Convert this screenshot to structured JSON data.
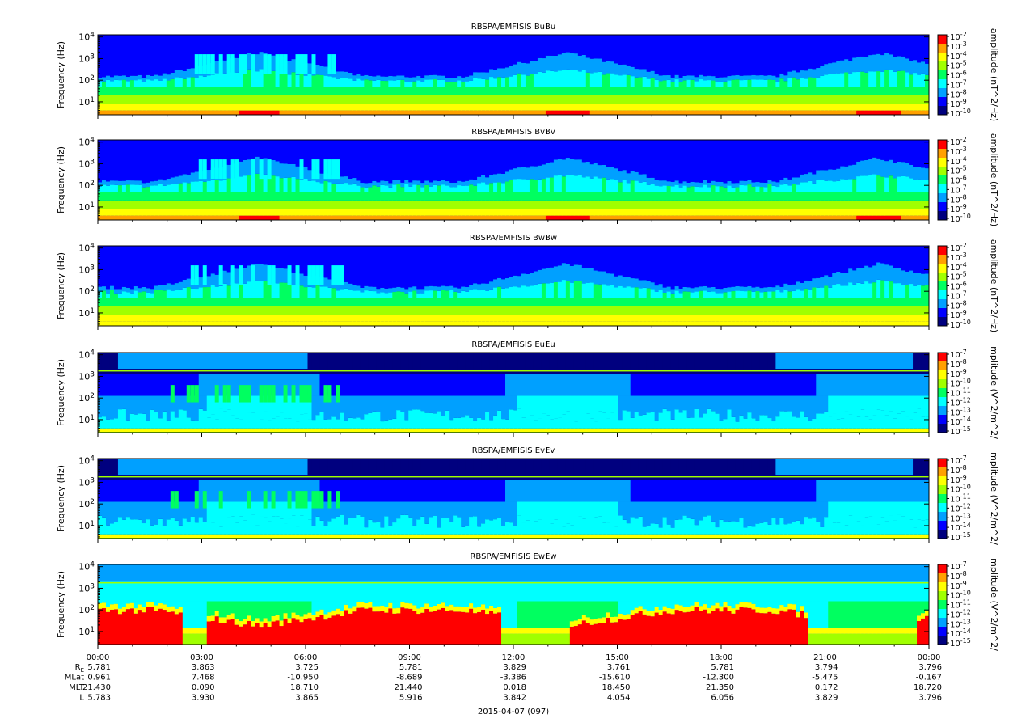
{
  "chart_data": {
    "type": "heatmap",
    "panels": [
      {
        "title": "RBSPA/EMFISIS  BuBu",
        "ylabel": "Frequency (Hz)",
        "cbar_label": "amplitude (nT^2/Hz)",
        "cbar_ticks": [
          "10^-2",
          "10^-3",
          "10^-4",
          "10^-5",
          "10^-6",
          "10^-7",
          "10^-8",
          "10^-9",
          "10^-10"
        ],
        "kind": "B"
      },
      {
        "title": "RBSPA/EMFISIS  BvBv",
        "ylabel": "Frequency (Hz)",
        "cbar_label": "amplitude (nT^2/Hz)",
        "cbar_ticks": [
          "10^-2",
          "10^-3",
          "10^-4",
          "10^-5",
          "10^-6",
          "10^-7",
          "10^-8",
          "10^-9",
          "10^-10"
        ],
        "kind": "B"
      },
      {
        "title": "RBSPA/EMFISIS  BwBw",
        "ylabel": "Frequency (Hz)",
        "cbar_label": "amplitude (nT^2/Hz)",
        "cbar_ticks": [
          "10^-2",
          "10^-3",
          "10^-4",
          "10^-5",
          "10^-6",
          "10^-7",
          "10^-8",
          "10^-9",
          "10^-10"
        ],
        "kind": "Bw"
      },
      {
        "title": "RBSPA/EMFISIS  EuEu",
        "ylabel": "Frequency (Hz)",
        "cbar_label": "mplitude (V^2/m^2/",
        "cbar_ticks": [
          "10^-7",
          "10^-8",
          "10^-9",
          "10^-10",
          "10^-11",
          "10^-12",
          "10^-13",
          "10^-14",
          "10^-15"
        ],
        "kind": "E"
      },
      {
        "title": "RBSPA/EMFISIS  EvEv",
        "ylabel": "Frequency (Hz)",
        "cbar_label": "mplitude (V^2/m^2/",
        "cbar_ticks": [
          "10^-7",
          "10^-8",
          "10^-9",
          "10^-10",
          "10^-11",
          "10^-12",
          "10^-13",
          "10^-14",
          "10^-15"
        ],
        "kind": "E"
      },
      {
        "title": "RBSPA/EMFISIS  EwEw",
        "ylabel": "Frequency (Hz)",
        "cbar_label": "mplitude (V^2/m^2/",
        "cbar_ticks": [
          "10^-7",
          "10^-8",
          "10^-9",
          "10^-10",
          "10^-11",
          "10^-12",
          "10^-13",
          "10^-14",
          "10^-15"
        ],
        "kind": "Ew"
      }
    ],
    "y_scale": "log",
    "y_ticks": [
      1,
      2,
      3,
      4
    ],
    "y_tick_labels": [
      "10^1",
      "10^2",
      "10^3",
      "10^4"
    ],
    "ylim_log10": [
      0.4,
      4.1
    ],
    "xlim_hours": [
      0,
      24
    ],
    "x_tick_hours": [
      0,
      3,
      6,
      9,
      12,
      15,
      18,
      21,
      24
    ],
    "x_tick_labels": [
      "00:00",
      "03:00",
      "06:00",
      "09:00",
      "12:00",
      "15:00",
      "18:00",
      "21:00",
      "00:00"
    ],
    "orbit_rows": [
      {
        "label": "RE",
        "values": [
          "5.781",
          "3.863",
          "3.725",
          "5.781",
          "3.829",
          "3.761",
          "5.781",
          "3.794",
          "3.796"
        ]
      },
      {
        "label": "MLat",
        "values": [
          "0.961",
          "7.468",
          "-10.950",
          "-8.689",
          "-3.386",
          "-15.610",
          "-12.300",
          "-5.475",
          "-0.167"
        ]
      },
      {
        "label": "MLT",
        "values": [
          "21.430",
          "0.090",
          "18.710",
          "21.440",
          "0.018",
          "18.450",
          "21.350",
          "0.172",
          "18.720"
        ]
      },
      {
        "label": "L",
        "values": [
          "5.783",
          "3.930",
          "3.865",
          "5.916",
          "3.842",
          "4.054",
          "6.056",
          "3.829",
          "3.796"
        ]
      }
    ],
    "date_label": "2015-04-07 (097)",
    "colorscale": [
      "#00007f",
      "#0000ff",
      "#00a0ff",
      "#00ffff",
      "#00ff60",
      "#a0ff00",
      "#ffff00",
      "#ffa000",
      "#ff0000"
    ]
  }
}
